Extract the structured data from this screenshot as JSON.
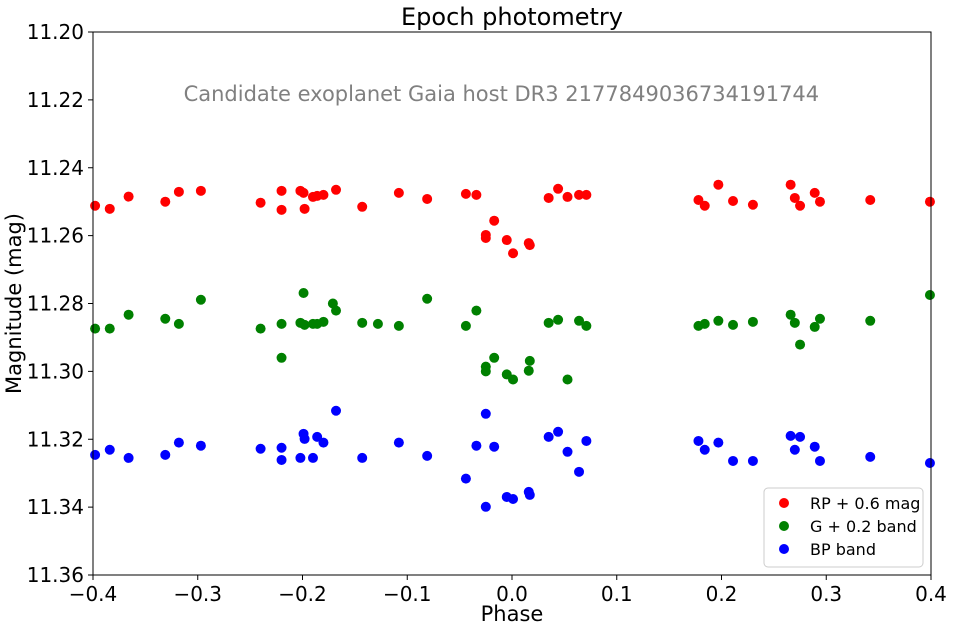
{
  "chart_data": {
    "type": "scatter",
    "title": "Epoch photometry",
    "annotation": "Candidate exoplanet Gaia host DR3 2177849036734191744",
    "xlabel": "Phase",
    "ylabel": "Magnitude (mag)",
    "xlim": [
      -0.4,
      0.4
    ],
    "ylim": [
      11.36,
      11.2
    ],
    "y_inverted": true,
    "grid": false,
    "legend_position": "lower-right",
    "x_ticks": [
      "−0.4",
      "−0.3",
      "−0.2",
      "−0.1",
      "0.0",
      "0.1",
      "0.2",
      "0.3",
      "0.4"
    ],
    "x_tick_values": [
      -0.4,
      -0.3,
      -0.2,
      -0.1,
      0.0,
      0.1,
      0.2,
      0.3,
      0.4
    ],
    "y_ticks": [
      "11.20",
      "11.22",
      "11.24",
      "11.26",
      "11.28",
      "11.30",
      "11.32",
      "11.34",
      "11.36"
    ],
    "y_tick_values": [
      11.2,
      11.22,
      11.24,
      11.26,
      11.28,
      11.3,
      11.32,
      11.34,
      11.36
    ],
    "series": [
      {
        "name": "RP + 0.6 mag",
        "color": "#ff0000",
        "points": [
          [
            -0.398,
            11.2512
          ],
          [
            -0.384,
            11.2521
          ],
          [
            -0.366,
            11.2485
          ],
          [
            -0.331,
            11.25
          ],
          [
            -0.318,
            11.2471
          ],
          [
            -0.297,
            11.2468
          ],
          [
            -0.24,
            11.2503
          ],
          [
            -0.22,
            11.2468
          ],
          [
            -0.22,
            11.2524
          ],
          [
            -0.202,
            11.2468
          ],
          [
            -0.199,
            11.2474
          ],
          [
            -0.198,
            11.2521
          ],
          [
            -0.19,
            11.2486
          ],
          [
            -0.186,
            11.2483
          ],
          [
            -0.18,
            11.248
          ],
          [
            -0.168,
            11.2465
          ],
          [
            -0.143,
            11.2515
          ],
          [
            -0.108,
            11.2474
          ],
          [
            -0.081,
            11.2492
          ],
          [
            -0.044,
            11.2477
          ],
          [
            -0.034,
            11.248
          ],
          [
            -0.025,
            11.2598
          ],
          [
            -0.025,
            11.2607
          ],
          [
            -0.017,
            11.2556
          ],
          [
            -0.005,
            11.2613
          ],
          [
            0.001,
            11.2652
          ],
          [
            0.016,
            11.2622
          ],
          [
            0.017,
            11.2628
          ],
          [
            0.035,
            11.2489
          ],
          [
            0.044,
            11.2462
          ],
          [
            0.053,
            11.2486
          ],
          [
            0.064,
            11.248
          ],
          [
            0.071,
            11.248
          ],
          [
            0.178,
            11.2495
          ],
          [
            0.184,
            11.2512
          ],
          [
            0.197,
            11.245
          ],
          [
            0.211,
            11.2498
          ],
          [
            0.23,
            11.2509
          ],
          [
            0.266,
            11.245
          ],
          [
            0.27,
            11.2489
          ],
          [
            0.275,
            11.2512
          ],
          [
            0.289,
            11.2474
          ],
          [
            0.294,
            11.25
          ],
          [
            0.342,
            11.2495
          ],
          [
            0.399,
            11.25
          ]
        ]
      },
      {
        "name": "G + 0.2 band",
        "color": "#008000",
        "points": [
          [
            -0.398,
            11.2874
          ],
          [
            -0.384,
            11.2874
          ],
          [
            -0.366,
            11.2833
          ],
          [
            -0.331,
            11.2845
          ],
          [
            -0.318,
            11.286
          ],
          [
            -0.297,
            11.2789
          ],
          [
            -0.24,
            11.2874
          ],
          [
            -0.22,
            11.296
          ],
          [
            -0.22,
            11.286
          ],
          [
            -0.202,
            11.2857
          ],
          [
            -0.199,
            11.2769
          ],
          [
            -0.198,
            11.2863
          ],
          [
            -0.19,
            11.286
          ],
          [
            -0.186,
            11.286
          ],
          [
            -0.18,
            11.2854
          ],
          [
            -0.171,
            11.28
          ],
          [
            -0.168,
            11.2821
          ],
          [
            -0.143,
            11.2857
          ],
          [
            -0.128,
            11.286
          ],
          [
            -0.108,
            11.2866
          ],
          [
            -0.081,
            11.2786
          ],
          [
            -0.044,
            11.2866
          ],
          [
            -0.034,
            11.2821
          ],
          [
            -0.025,
            11.2986
          ],
          [
            -0.025,
            11.3
          ],
          [
            -0.017,
            11.296
          ],
          [
            -0.005,
            11.3009
          ],
          [
            0.001,
            11.3024
          ],
          [
            0.016,
            11.2998
          ],
          [
            0.017,
            11.2969
          ],
          [
            0.035,
            11.2857
          ],
          [
            0.044,
            11.2848
          ],
          [
            0.053,
            11.3024
          ],
          [
            0.064,
            11.2851
          ],
          [
            0.071,
            11.2866
          ],
          [
            0.178,
            11.2866
          ],
          [
            0.184,
            11.286
          ],
          [
            0.197,
            11.2851
          ],
          [
            0.211,
            11.2863
          ],
          [
            0.23,
            11.2854
          ],
          [
            0.266,
            11.2833
          ],
          [
            0.27,
            11.2857
          ],
          [
            0.275,
            11.2921
          ],
          [
            0.289,
            11.2869
          ],
          [
            0.294,
            11.2845
          ],
          [
            0.342,
            11.2851
          ],
          [
            0.399,
            11.2775
          ]
        ]
      },
      {
        "name": "BP band",
        "color": "#0000ff",
        "points": [
          [
            -0.398,
            11.3246
          ],
          [
            -0.384,
            11.3231
          ],
          [
            -0.366,
            11.3255
          ],
          [
            -0.331,
            11.3246
          ],
          [
            -0.318,
            11.321
          ],
          [
            -0.297,
            11.3219
          ],
          [
            -0.24,
            11.3228
          ],
          [
            -0.22,
            11.3261
          ],
          [
            -0.22,
            11.3225
          ],
          [
            -0.202,
            11.3255
          ],
          [
            -0.199,
            11.3184
          ],
          [
            -0.198,
            11.3199
          ],
          [
            -0.19,
            11.3255
          ],
          [
            -0.186,
            11.3193
          ],
          [
            -0.18,
            11.321
          ],
          [
            -0.168,
            11.3116
          ],
          [
            -0.143,
            11.3255
          ],
          [
            -0.108,
            11.321
          ],
          [
            -0.081,
            11.3249
          ],
          [
            -0.044,
            11.3316
          ],
          [
            -0.034,
            11.3219
          ],
          [
            -0.025,
            11.3125
          ],
          [
            -0.025,
            11.3399
          ],
          [
            -0.017,
            11.3222
          ],
          [
            -0.005,
            11.337
          ],
          [
            0.001,
            11.3376
          ],
          [
            0.016,
            11.3355
          ],
          [
            0.017,
            11.3364
          ],
          [
            0.035,
            11.3193
          ],
          [
            0.044,
            11.3178
          ],
          [
            0.053,
            11.3237
          ],
          [
            0.064,
            11.3296
          ],
          [
            0.071,
            11.3205
          ],
          [
            0.178,
            11.3205
          ],
          [
            0.184,
            11.3231
          ],
          [
            0.197,
            11.321
          ],
          [
            0.211,
            11.3264
          ],
          [
            0.23,
            11.3264
          ],
          [
            0.266,
            11.319
          ],
          [
            0.27,
            11.3231
          ],
          [
            0.275,
            11.3193
          ],
          [
            0.289,
            11.3222
          ],
          [
            0.294,
            11.3264
          ],
          [
            0.342,
            11.3252
          ],
          [
            0.399,
            11.327
          ]
        ]
      }
    ]
  }
}
